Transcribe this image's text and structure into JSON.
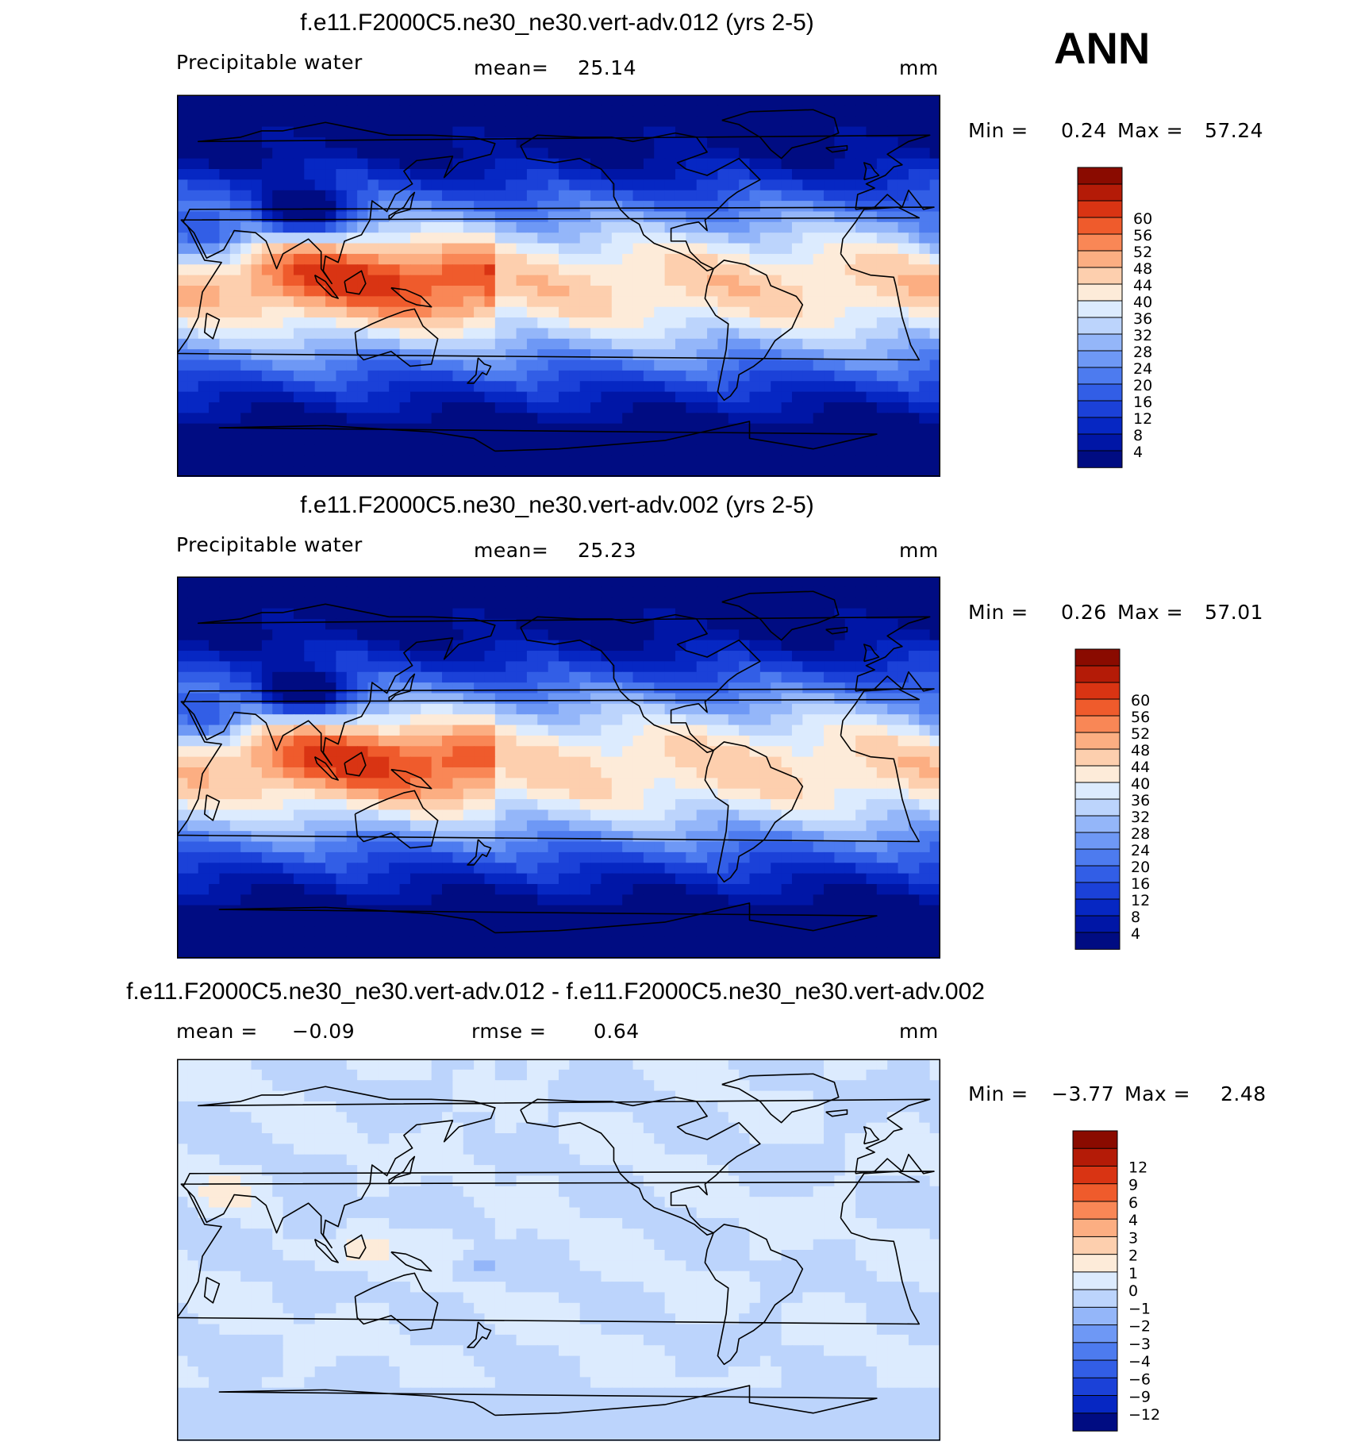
{
  "season": "ANN",
  "colors": {
    "abs_scale": [
      "#000c82",
      "#0016a6",
      "#0627c3",
      "#1b41d8",
      "#325ee6",
      "#4d7bef",
      "#6e98f5",
      "#94b6f9",
      "#bcd4fc",
      "#dcebfe",
      "#fdebd9",
      "#fdcfae",
      "#fcae82",
      "#f98756",
      "#ef5b2c",
      "#d93413",
      "#b41b07",
      "#8a0b00"
    ],
    "diff_scale": [
      "#000c82",
      "#0627c3",
      "#1b41d8",
      "#325ee6",
      "#4d7bef",
      "#6e98f5",
      "#94b6f9",
      "#bcd4fc",
      "#dcebfe",
      "#fdebd9",
      "#fdcfae",
      "#fcae82",
      "#f98756",
      "#ef5b2c",
      "#d93413",
      "#b41b07",
      "#8a0b00"
    ],
    "coast": "#000000"
  },
  "chart_data": [
    {
      "type": "heatmap",
      "title": "f.e11.F2000C5.ne30_ne30.vert-adv.012 (yrs 2-5)",
      "variable": "Precipitable water",
      "stat_label": "mean=",
      "stat_value": "25.14",
      "units": "mm",
      "min_label": "Min =",
      "min_value": "0.24",
      "max_label": "Max =",
      "max_value": "57.24",
      "levels": [
        "4",
        "8",
        "12",
        "16",
        "20",
        "24",
        "28",
        "32",
        "36",
        "40",
        "44",
        "48",
        "52",
        "56",
        "60"
      ],
      "field": "abs",
      "peak": 1.0
    },
    {
      "type": "heatmap",
      "title": "f.e11.F2000C5.ne30_ne30.vert-adv.002 (yrs 2-5)",
      "variable": "Precipitable water",
      "stat_label": "mean=",
      "stat_value": "25.23",
      "units": "mm",
      "min_label": "Min =",
      "min_value": "0.26",
      "max_label": "Max =",
      "max_value": "57.01",
      "levels": [
        "4",
        "8",
        "12",
        "16",
        "20",
        "24",
        "28",
        "32",
        "36",
        "40",
        "44",
        "48",
        "52",
        "56",
        "60"
      ],
      "field": "abs",
      "peak": 0.99
    },
    {
      "type": "heatmap",
      "title": "f.e11.F2000C5.ne30_ne30.vert-adv.012 - f.e11.F2000C5.ne30_ne30.vert-adv.002",
      "stat_label": "mean =",
      "stat_value": "−0.09",
      "stat2_label": "rmse =",
      "stat2_value": "0.64",
      "units": "mm",
      "min_label": "Min =",
      "min_value": "−3.77",
      "max_label": "Max =",
      "max_value": "2.48",
      "levels": [
        "−12",
        "−9",
        "−6",
        "−4",
        "−3",
        "−2",
        "−1",
        "0",
        "1",
        "2",
        "3",
        "4",
        "6",
        "9",
        "12"
      ],
      "field": "diff"
    }
  ]
}
